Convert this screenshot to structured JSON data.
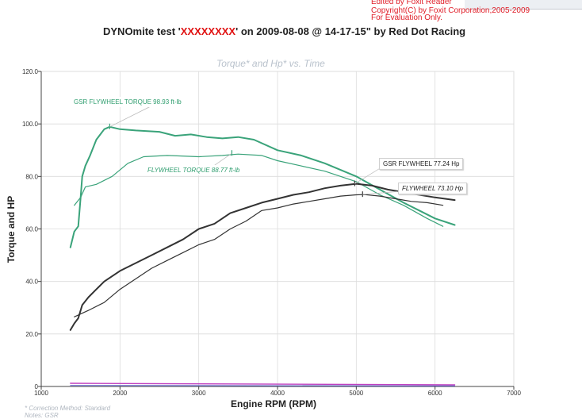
{
  "watermark": {
    "line1": "Edited by Foxit Reader",
    "line2": "Copyright(C) by Foxit Corporation,2005-2009",
    "line3": "For Evaluation Only."
  },
  "header": {
    "title_prefix": "DYNOmite test '",
    "title_redacted": "XXXXXXXX",
    "title_suffix": "' on 2009-08-08 @ 14-17-15\" by Red Dot Racing"
  },
  "footer": {
    "correction": "* Correction Method: Standard",
    "notes": "Notes: GSR"
  },
  "colors": {
    "torque": "#3aa37a",
    "hp": "#333333",
    "baseline_magenta": "#c040c0",
    "baseline_blue": "#6060d0",
    "grid": "#dcdcdc",
    "axis": "#444444"
  },
  "chart_data": {
    "type": "line",
    "title": "Torque* and Hp* vs. Time",
    "xlabel": "Engine RPM (RPM)",
    "ylabel": "Torque and HP",
    "xlim": [
      1000,
      7000
    ],
    "ylim": [
      0,
      120
    ],
    "x_ticks": [
      1000,
      2000,
      3000,
      4000,
      5000,
      6000,
      7000
    ],
    "y_ticks": [
      0,
      20.0,
      40.0,
      60.0,
      80.0,
      100.0,
      120.0
    ],
    "y_tick_labels": [
      "0",
      "20.0",
      "40.0",
      "60.0",
      "80.0",
      "100.0",
      "120.0"
    ],
    "grid": true,
    "series": [
      {
        "name": "GSR FLYWHEEL TORQUE",
        "color": "#3aa37a",
        "width": 2,
        "x": [
          1370,
          1420,
          1470,
          1500,
          1520,
          1560,
          1620,
          1700,
          1800,
          1870,
          2000,
          2200,
          2500,
          2700,
          2900,
          3100,
          3300,
          3500,
          3700,
          4000,
          4300,
          4600,
          5000,
          5300,
          5600,
          5800,
          6000,
          6250
        ],
        "y": [
          53,
          59,
          61,
          72,
          80,
          84,
          88,
          94,
          98,
          98.9,
          98,
          97.5,
          97,
          95.5,
          96,
          95,
          94.5,
          95,
          94,
          90,
          88,
          85,
          80,
          75,
          70,
          67,
          64,
          61.5
        ]
      },
      {
        "name": "FLYWHEEL TORQUE",
        "color": "#3aa37a",
        "width": 1.2,
        "x": [
          1420,
          1500,
          1560,
          1700,
          1900,
          2100,
          2300,
          2600,
          3000,
          3300,
          3500,
          3800,
          4000,
          4300,
          4600,
          5000,
          5300,
          5600,
          5900,
          6100
        ],
        "y": [
          69,
          72,
          76,
          77,
          80,
          85,
          87.5,
          88,
          87.5,
          88,
          88.5,
          88,
          86,
          84,
          82,
          78,
          73,
          69,
          64,
          61
        ]
      },
      {
        "name": "GSR FLYWHEEL",
        "color": "#333333",
        "width": 2,
        "x": [
          1370,
          1420,
          1470,
          1520,
          1600,
          1700,
          1800,
          2000,
          2200,
          2400,
          2600,
          2800,
          3000,
          3200,
          3400,
          3600,
          3800,
          4000,
          4200,
          4400,
          4600,
          4800,
          5000,
          5200,
          5400,
          5600,
          5800,
          6000,
          6250
        ],
        "y": [
          21.5,
          24,
          26,
          31,
          34,
          37,
          40,
          44,
          47,
          50,
          53,
          56,
          60,
          62,
          66,
          68,
          70,
          71.5,
          73,
          74,
          75.5,
          76.5,
          77.2,
          76.5,
          75,
          74,
          73,
          72,
          71
        ]
      },
      {
        "name": "FLYWHEEL",
        "color": "#333333",
        "width": 1.2,
        "x": [
          1420,
          1600,
          1800,
          2000,
          2200,
          2400,
          2600,
          2800,
          3000,
          3200,
          3400,
          3600,
          3800,
          4000,
          4200,
          4400,
          4600,
          4800,
          5000,
          5100,
          5300,
          5500,
          5700,
          5900,
          6100
        ],
        "y": [
          26.5,
          29,
          32,
          37,
          41,
          45,
          48,
          51,
          54,
          56,
          60,
          63,
          67,
          68,
          69.5,
          70.5,
          71.5,
          72.5,
          73,
          73.1,
          72.5,
          71.5,
          70.5,
          70,
          69
        ]
      },
      {
        "name": "",
        "color": "#c040c0",
        "width": 1.4,
        "x": [
          1370,
          6250
        ],
        "y": [
          1.2,
          0.6
        ]
      },
      {
        "name": "",
        "color": "#6060d0",
        "width": 1,
        "x": [
          1370,
          6250
        ],
        "y": [
          0.4,
          0.2
        ]
      }
    ],
    "annotations": [
      {
        "text": "GSR FLYWHEEL TORQUE 98.93 ft-lb",
        "style": "green"
      },
      {
        "text": "FLYWHEEL TORQUE  88.77 ft-lb",
        "style": "green-italic"
      },
      {
        "text": "GSR  FLYWHEEL 77.24 Hp",
        "style": "dark"
      },
      {
        "text": "FLYWHEEL  73.10 Hp",
        "style": "dark-italic"
      }
    ],
    "markers": [
      {
        "x": 1870,
        "y": 98.9,
        "color": "#3aa37a"
      },
      {
        "x": 3420,
        "y": 88.8,
        "color": "#3aa37a"
      },
      {
        "x": 4980,
        "y": 77.2,
        "color": "#333333"
      },
      {
        "x": 5080,
        "y": 73.1,
        "color": "#333333"
      }
    ]
  }
}
